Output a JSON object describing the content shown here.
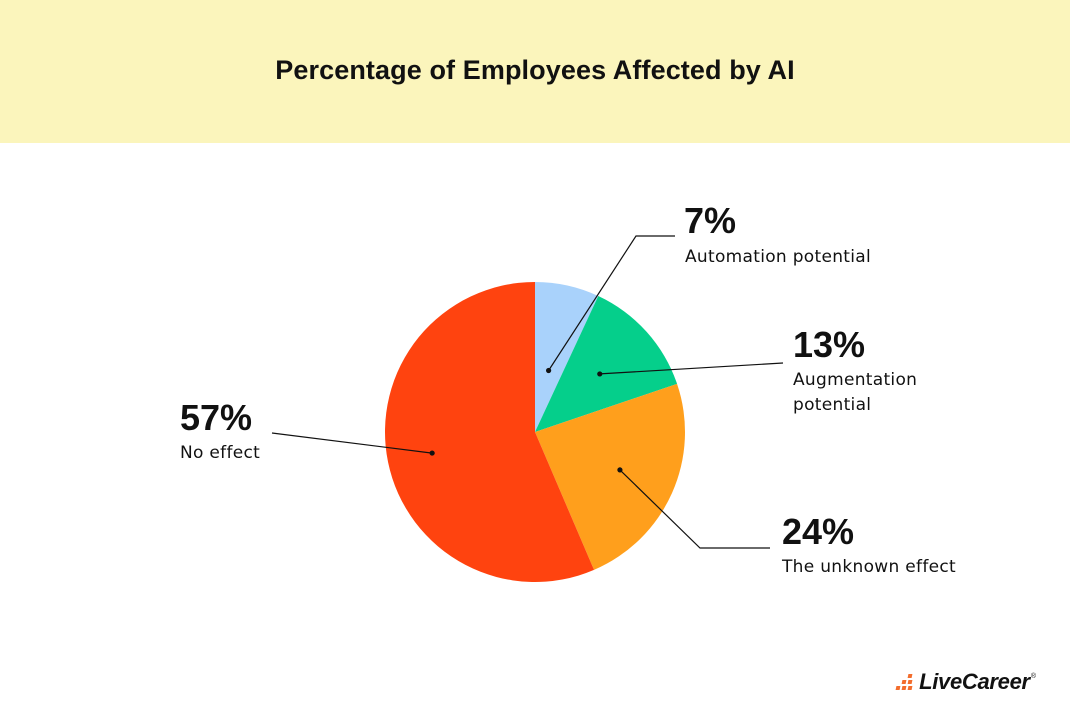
{
  "header": {
    "title": "Percentage of Employees Affected by AI"
  },
  "chart_data": {
    "type": "pie",
    "title": "Percentage of Employees Affected by AI",
    "slices": [
      {
        "label": "Automation potential",
        "value": 7,
        "value_label": "7%",
        "color": "#a9d2fb"
      },
      {
        "label": "Augmentation potential",
        "value": 13,
        "value_label": "13%",
        "color": "#05cf8b"
      },
      {
        "label": "The unknown effect",
        "value": 24,
        "value_label": "24%",
        "color": "#ff9f1c"
      },
      {
        "label": "No effect",
        "value": 57,
        "value_label": "57%",
        "color": "#ff430f"
      }
    ],
    "start": "12 o'clock",
    "direction": "clockwise"
  },
  "logo": {
    "text": "LiveCareer",
    "registered": "®",
    "accent_color": "#f36d2d"
  }
}
